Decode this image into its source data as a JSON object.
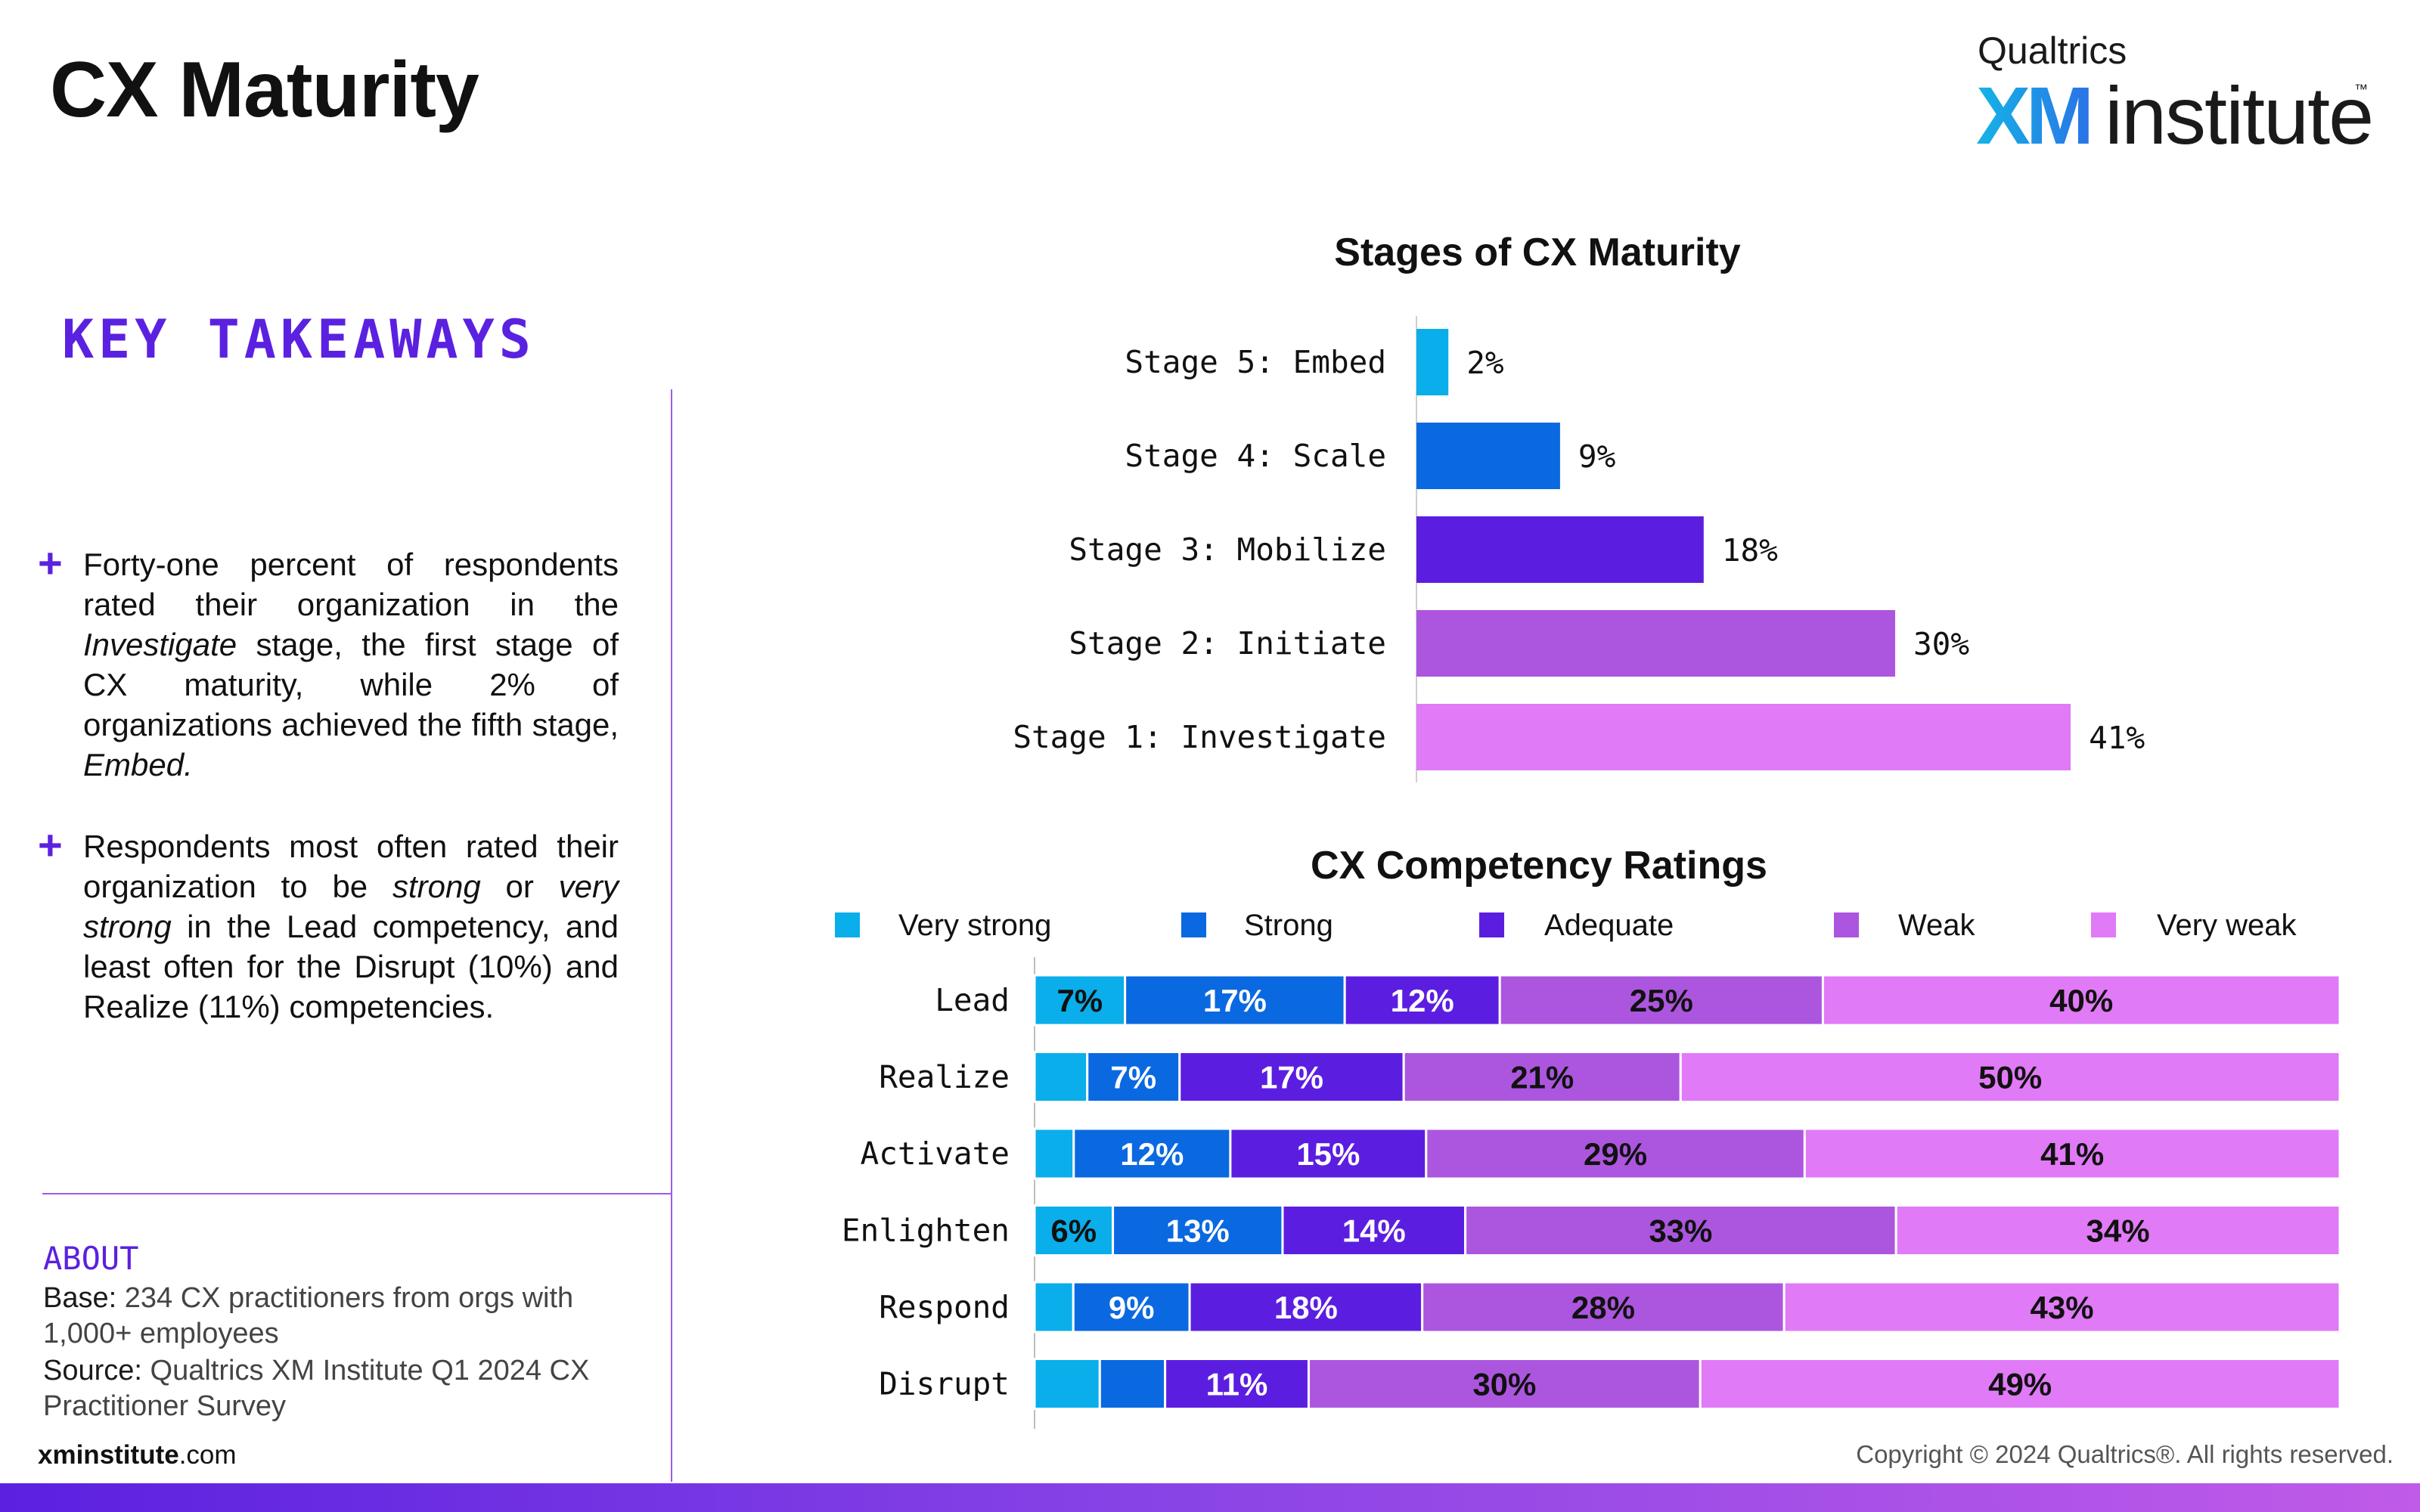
{
  "title": "CX Maturity",
  "logo": {
    "top": "Qualtrics",
    "xm": "XM",
    "name": "institute",
    "tm": "™"
  },
  "takeaways": {
    "heading": "KEY TAKEAWAYS",
    "bullet_symbol": "+",
    "items": [
      {
        "parts": [
          "Forty-one percent of respondents rated their organization in the ",
          "Investigate",
          " stage, the first stage of CX maturity, while 2% of organizations achieved the fifth stage, ",
          "Embed."
        ]
      },
      {
        "parts": [
          "Respondents most often rated their organization to be ",
          "strong",
          " or ",
          "very strong",
          " in the Lead competency, and least often for the Disrupt (10%) and Realize (11%) competencies."
        ]
      }
    ]
  },
  "about": {
    "heading": "ABOUT",
    "base_label": "Base:",
    "base_text": " 234 CX practitioners from orgs with 1,000+ employees",
    "source_label": "Source:",
    "source_text": " Qualtrics XM Institute Q1 2024 CX Practitioner Survey"
  },
  "footer": {
    "site_bold": "xminstitute",
    "site_rest": ".com",
    "copyright": "Copyright © 2024 Qualtrics®. All rights reserved."
  },
  "colors": {
    "very_strong": "#0aaeea",
    "strong": "#0a69e0",
    "adequate": "#5b1ee0",
    "weak": "#ac56df",
    "very_weak": "#e17af7"
  },
  "chart_data": [
    {
      "type": "bar",
      "orientation": "horizontal",
      "title": "Stages of CX Maturity",
      "categories": [
        "Stage 5: Embed",
        "Stage 4: Scale",
        "Stage 3: Mobilize",
        "Stage 2: Initiate",
        "Stage 1: Investigate"
      ],
      "values": [
        2,
        9,
        18,
        30,
        41
      ],
      "value_labels": [
        "2%",
        "9%",
        "18%",
        "30%",
        "41%"
      ],
      "bar_colors": [
        "#0aaeea",
        "#0a69e0",
        "#5b1ee0",
        "#ac56df",
        "#e17af7"
      ],
      "xlim": [
        0,
        45
      ],
      "grid": false
    },
    {
      "type": "bar",
      "orientation": "horizontal",
      "stacked": true,
      "title": "CX Competency Ratings",
      "categories": [
        "Lead",
        "Realize",
        "Activate",
        "Enlighten",
        "Respond",
        "Disrupt"
      ],
      "legend_position": "top",
      "xlim": [
        0,
        100
      ],
      "series": [
        {
          "name": "Very strong",
          "color": "#0aaeea",
          "values": [
            7,
            4,
            3,
            6,
            3,
            5
          ],
          "labels": [
            "7%",
            "",
            "",
            "6%",
            "",
            ""
          ]
        },
        {
          "name": "Strong",
          "color": "#0a69e0",
          "values": [
            17,
            7,
            12,
            13,
            9,
            5
          ],
          "labels": [
            "17%",
            "7%",
            "12%",
            "13%",
            "9%",
            ""
          ]
        },
        {
          "name": "Adequate",
          "color": "#5b1ee0",
          "values": [
            12,
            17,
            15,
            14,
            18,
            11
          ],
          "labels": [
            "12%",
            "17%",
            "15%",
            "14%",
            "18%",
            "11%"
          ]
        },
        {
          "name": "Weak",
          "color": "#ac56df",
          "values": [
            25,
            21,
            29,
            33,
            28,
            30
          ],
          "labels": [
            "25%",
            "21%",
            "29%",
            "33%",
            "28%",
            "30%"
          ]
        },
        {
          "name": "Very weak",
          "color": "#e17af7",
          "values": [
            40,
            50,
            41,
            34,
            43,
            49
          ],
          "labels": [
            "40%",
            "50%",
            "41%",
            "34%",
            "43%",
            "49%"
          ]
        }
      ]
    }
  ]
}
